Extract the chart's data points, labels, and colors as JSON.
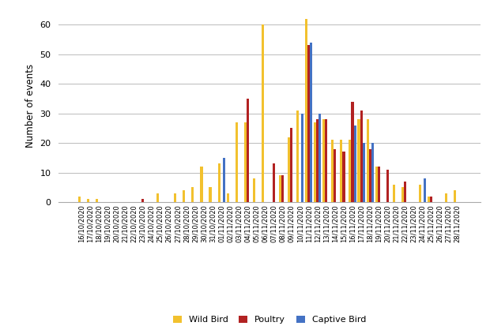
{
  "dates": [
    "16/10/2020",
    "17/10/2020",
    "18/10/2020",
    "19/10/2020",
    "20/10/2020",
    "21/10/2020",
    "22/10/2020",
    "23/10/2020",
    "24/10/2020",
    "25/10/2020",
    "26/10/2020",
    "27/10/2020",
    "28/10/2020",
    "29/10/2020",
    "30/10/2020",
    "31/10/2020",
    "01/11/2020",
    "02/11/2020",
    "03/11/2020",
    "04/11/2020",
    "05/11/2020",
    "06/11/2020",
    "07/11/2020",
    "08/11/2020",
    "09/11/2020",
    "10/11/2020",
    "11/11/2020",
    "12/11/2020",
    "13/11/2020",
    "14/11/2020",
    "15/11/2020",
    "16/11/2020",
    "17/11/2020",
    "18/11/2020",
    "19/11/2020",
    "20/11/2020",
    "21/11/2020",
    "22/11/2020",
    "23/11/2020",
    "24/11/2020",
    "25/11/2020",
    "26/11/2020",
    "27/11/2020",
    "28/11/2020"
  ],
  "wild_bird": [
    2,
    1,
    1,
    0,
    0,
    0,
    0,
    0,
    0,
    3,
    0,
    3,
    4,
    5,
    12,
    5,
    13,
    3,
    27,
    27,
    8,
    60,
    0,
    9,
    22,
    31,
    62,
    27,
    28,
    21,
    21,
    21,
    28,
    28,
    12,
    0,
    6,
    5,
    0,
    6,
    2,
    0,
    3,
    4
  ],
  "poultry": [
    0,
    0,
    0,
    0,
    0,
    0,
    0,
    1,
    0,
    0,
    0,
    0,
    0,
    0,
    0,
    0,
    0,
    0,
    0,
    35,
    0,
    0,
    13,
    9,
    25,
    0,
    53,
    28,
    28,
    18,
    17,
    34,
    31,
    18,
    12,
    11,
    0,
    7,
    0,
    0,
    2,
    0,
    0,
    0
  ],
  "captive_bird": [
    0,
    0,
    0,
    0,
    0,
    0,
    0,
    0,
    0,
    0,
    0,
    0,
    0,
    0,
    0,
    0,
    15,
    0,
    0,
    0,
    0,
    0,
    0,
    0,
    0,
    30,
    54,
    30,
    0,
    0,
    0,
    26,
    20,
    20,
    0,
    0,
    0,
    0,
    0,
    8,
    0,
    0,
    0,
    0
  ],
  "wild_bird_color": "#F2C12E",
  "poultry_color": "#B22222",
  "captive_bird_color": "#4472C4",
  "ylabel": "Number of events",
  "ylim": [
    0,
    65
  ],
  "yticks": [
    0,
    10,
    20,
    30,
    40,
    50,
    60
  ],
  "legend_labels": [
    "Wild Bird",
    "Poultry",
    "Captive Bird"
  ],
  "bar_width": 0.28
}
